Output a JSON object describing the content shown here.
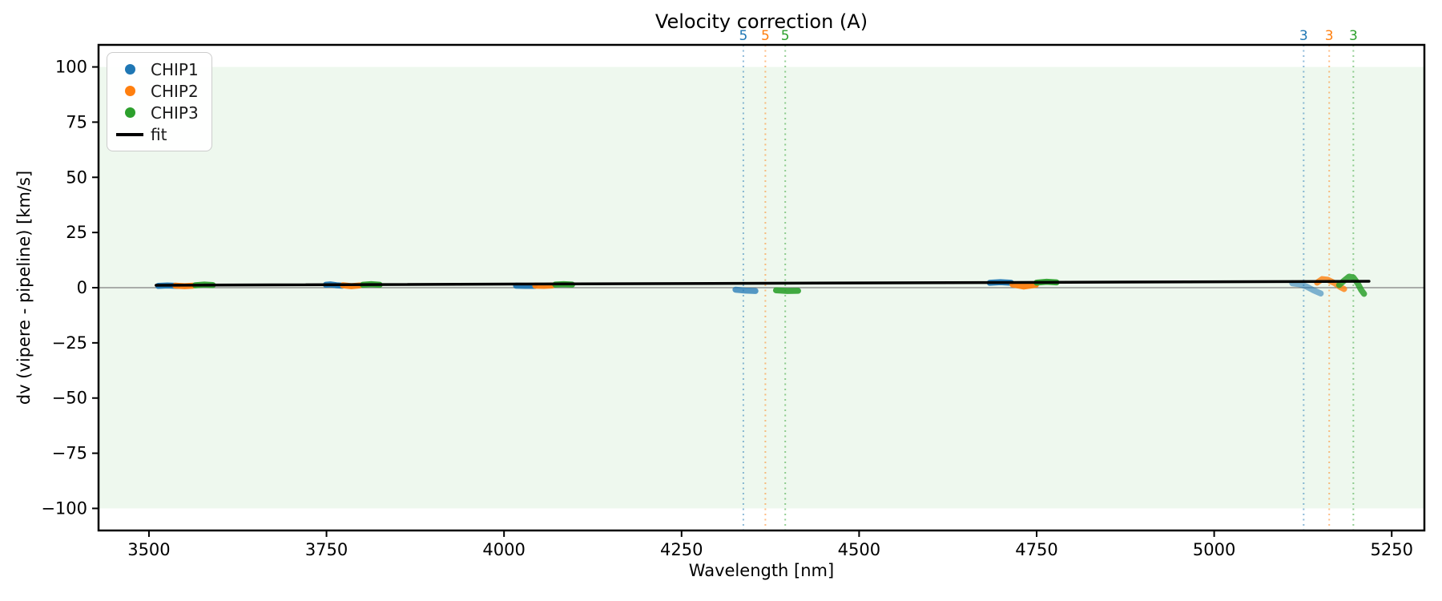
{
  "chart_data": {
    "type": "scatter",
    "title": "Velocity correction (A)",
    "xlabel": "Wavelength [nm]",
    "ylabel": "dv (vipere - pipeline) [km/s]",
    "xlim": [
      3429,
      5296
    ],
    "ylim": [
      -110,
      110
    ],
    "grid": false,
    "legend_position": "upper-left",
    "xticks": [
      {
        "v": 3500,
        "label": "3500"
      },
      {
        "v": 3750,
        "label": "3750"
      },
      {
        "v": 4000,
        "label": "4000"
      },
      {
        "v": 4250,
        "label": "4250"
      },
      {
        "v": 4500,
        "label": "4500"
      },
      {
        "v": 4750,
        "label": "4750"
      },
      {
        "v": 5000,
        "label": "5000"
      },
      {
        "v": 5250,
        "label": "5250"
      }
    ],
    "yticks": [
      {
        "v": 100,
        "label": "100"
      },
      {
        "v": 75,
        "label": "75"
      },
      {
        "v": 50,
        "label": "50"
      },
      {
        "v": 25,
        "label": "25"
      },
      {
        "v": 0,
        "label": "0"
      },
      {
        "v": -25,
        "label": "−25"
      },
      {
        "v": -50,
        "label": "−50"
      },
      {
        "v": -75,
        "label": "−75"
      },
      {
        "v": -100,
        "label": "−100"
      }
    ],
    "hspan": {
      "ymin": -100,
      "ymax": 100,
      "fill": "rgba(44,160,44,0.08)"
    },
    "zero_line": {
      "y": 0,
      "color": "#808080"
    },
    "vlines": [
      {
        "x": 4337,
        "color": "#1f77b4",
        "label": "5"
      },
      {
        "x": 4368,
        "color": "#ff7f0e",
        "label": "5"
      },
      {
        "x": 4396,
        "color": "#2ca02c",
        "label": "5"
      },
      {
        "x": 5126,
        "color": "#1f77b4",
        "label": "3"
      },
      {
        "x": 5162,
        "color": "#ff7f0e",
        "label": "3"
      },
      {
        "x": 5196,
        "color": "#2ca02c",
        "label": "3"
      }
    ],
    "series": [
      {
        "name": "CHIP1",
        "color": "#1f77b4",
        "segments": [
          {
            "alpha": 0.95,
            "pts": [
              [
                3513,
                0.8
              ],
              [
                3526,
                1.0
              ],
              [
                3540,
                0.8
              ]
            ]
          },
          {
            "alpha": 0.95,
            "pts": [
              [
                3749,
                1.3
              ],
              [
                3756,
                1.5
              ],
              [
                3764,
                1.1
              ],
              [
                3772,
                0.9
              ]
            ]
          },
          {
            "alpha": 0.95,
            "pts": [
              [
                4017,
                0.9
              ],
              [
                4030,
                0.8
              ],
              [
                4043,
                0.8
              ]
            ]
          },
          {
            "alpha": 0.75,
            "pts": [
              [
                4326,
                -0.9
              ],
              [
                4340,
                -1.3
              ],
              [
                4354,
                -1.5
              ]
            ]
          },
          {
            "alpha": 0.95,
            "pts": [
              [
                4684,
                2.2
              ],
              [
                4699,
                2.5
              ],
              [
                4714,
                2.2
              ]
            ]
          },
          {
            "alpha": 0.55,
            "pts": [
              [
                5110,
                2.0
              ],
              [
                5120,
                1.6
              ],
              [
                5130,
                0.5
              ],
              [
                5140,
                -1.2
              ],
              [
                5150,
                -2.6
              ]
            ]
          }
        ]
      },
      {
        "name": "CHIP2",
        "color": "#ff7f0e",
        "segments": [
          {
            "alpha": 0.95,
            "pts": [
              [
                3537,
                0.9
              ],
              [
                3550,
                0.7
              ],
              [
                3562,
                0.9
              ]
            ]
          },
          {
            "alpha": 0.95,
            "pts": [
              [
                3773,
                1.1
              ],
              [
                3785,
                0.7
              ],
              [
                3797,
                1.0
              ]
            ]
          },
          {
            "alpha": 0.95,
            "pts": [
              [
                4044,
                0.9
              ],
              [
                4056,
                0.8
              ],
              [
                4068,
                1.0
              ]
            ]
          },
          {
            "alpha": 0.95,
            "pts": [
              [
                4716,
                1.5
              ],
              [
                4732,
                0.5
              ],
              [
                4749,
                1.3
              ]
            ]
          },
          {
            "alpha": 0.8,
            "pts": [
              [
                5145,
                2.3
              ],
              [
                5152,
                3.9
              ],
              [
                5160,
                3.6
              ],
              [
                5170,
                2.0
              ],
              [
                5178,
                0.2
              ],
              [
                5183,
                -0.6
              ]
            ]
          }
        ]
      },
      {
        "name": "CHIP3",
        "color": "#2ca02c",
        "segments": [
          {
            "alpha": 0.95,
            "pts": [
              [
                3565,
                1.1
              ],
              [
                3578,
                1.4
              ],
              [
                3590,
                1.2
              ]
            ]
          },
          {
            "alpha": 0.95,
            "pts": [
              [
                3801,
                1.3
              ],
              [
                3813,
                1.6
              ],
              [
                3825,
                1.3
              ]
            ]
          },
          {
            "alpha": 0.95,
            "pts": [
              [
                4072,
                1.4
              ],
              [
                4084,
                1.6
              ],
              [
                4096,
                1.4
              ]
            ]
          },
          {
            "alpha": 0.9,
            "pts": [
              [
                4383,
                -1.2
              ],
              [
                4399,
                -1.5
              ],
              [
                4414,
                -1.4
              ]
            ]
          },
          {
            "alpha": 0.95,
            "pts": [
              [
                4750,
                2.3
              ],
              [
                4764,
                2.7
              ],
              [
                4778,
                2.4
              ]
            ]
          },
          {
            "alpha": 0.85,
            "pts": [
              [
                5176,
                1.2
              ],
              [
                5183,
                3.2
              ],
              [
                5190,
                5.0
              ],
              [
                5196,
                4.6
              ],
              [
                5202,
                2.0
              ],
              [
                5207,
                -1.0
              ],
              [
                5211,
                -2.8
              ]
            ]
          }
        ]
      }
    ],
    "fit": {
      "name": "fit",
      "color": "#000000",
      "points": [
        [
          3510,
          1.1
        ],
        [
          5218,
          2.9
        ]
      ]
    },
    "legend": {
      "entries": [
        {
          "label": "CHIP1",
          "marker": "dot",
          "color": "#1f77b4"
        },
        {
          "label": "CHIP2",
          "marker": "dot",
          "color": "#ff7f0e"
        },
        {
          "label": "CHIP3",
          "marker": "dot",
          "color": "#2ca02c"
        },
        {
          "label": "fit",
          "marker": "line",
          "color": "#000000"
        }
      ]
    }
  }
}
